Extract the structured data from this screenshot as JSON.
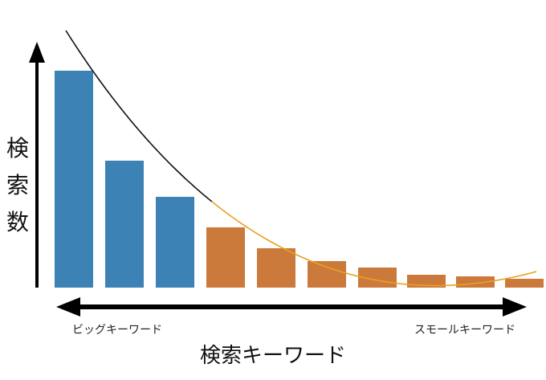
{
  "chart_data": {
    "type": "bar",
    "title": "",
    "ylabel": "検索数",
    "xlabel": "検索キーワード",
    "x_left_label": "ビッグキーワード",
    "x_right_label": "スモールキーワード",
    "values": [
      270,
      158,
      113,
      75,
      49,
      33,
      25,
      16,
      14,
      11
    ],
    "bar_groups": [
      "big",
      "big",
      "big",
      "small",
      "small",
      "small",
      "small",
      "small",
      "small",
      "small"
    ],
    "ylim": [
      0,
      290
    ],
    "grid": false,
    "colors": {
      "big": "#3c82b4",
      "small": "#cc7a3b",
      "curve_big": "#111111",
      "curve_small": "#e8a020",
      "axis": "#000000"
    }
  }
}
